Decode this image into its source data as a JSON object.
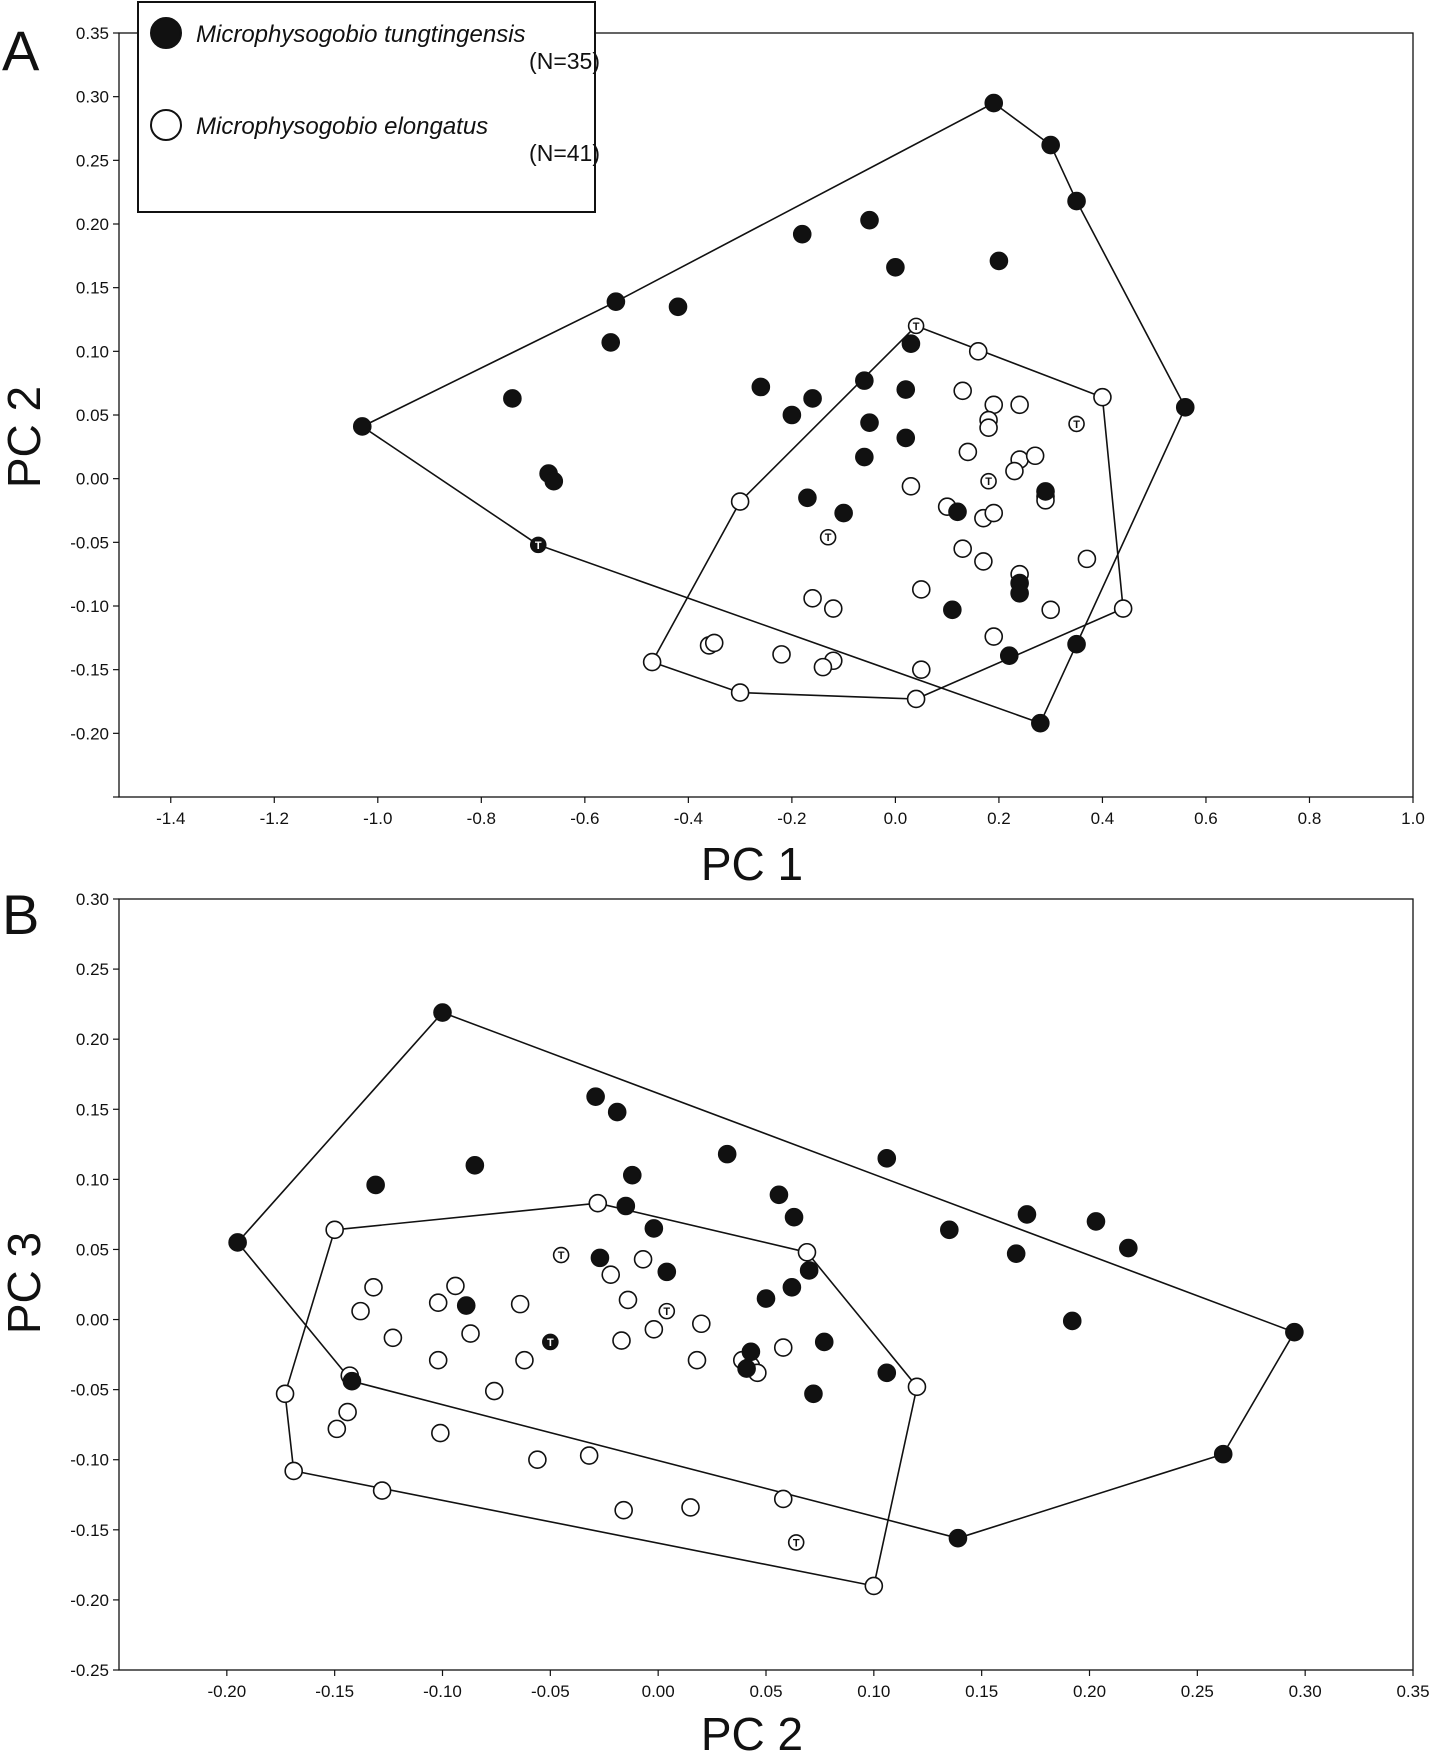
{
  "legend": {
    "species": [
      {
        "name": "Microphysogobio tungtingensis",
        "n": "(N=35)",
        "marker": "filled"
      },
      {
        "name": "Microphysogobio elongatus",
        "n": "(N=41)",
        "marker": "open"
      }
    ]
  },
  "type_marker_letter": "T",
  "colors": {
    "ink": "#111111",
    "fill_filled": "#111111",
    "fill_open": "#ffffff"
  },
  "chart_data": [
    {
      "type": "scatter",
      "panel": "A",
      "xlabel": "PC 1",
      "ylabel": "PC 2",
      "xlim": [
        -1.5,
        1.0
      ],
      "ylim": [
        -0.25,
        0.35
      ],
      "xticks": [
        -1.4,
        -1.2,
        -1.0,
        -0.8,
        -0.6,
        -0.4,
        -0.2,
        0.0,
        0.2,
        0.4,
        0.6,
        0.8,
        1.0
      ],
      "xtick_labels": [
        "-1.4",
        "-1.2",
        "-1.0",
        "-0.8",
        "-0.6",
        "-0.4",
        "-0.2",
        "0.0",
        "0.2",
        "0.4",
        "0.6",
        "0.8",
        "1.0"
      ],
      "yticks": [
        -0.25,
        -0.2,
        -0.15,
        -0.1,
        -0.05,
        0.0,
        0.05,
        0.1,
        0.15,
        0.2,
        0.25,
        0.3,
        0.35
      ],
      "ytick_labels": [
        "",
        "-0.20",
        "-0.15",
        "-0.10",
        "-0.05",
        "0.00",
        "0.05",
        "0.10",
        "0.15",
        "0.20",
        "0.25",
        "0.30",
        "0.35"
      ],
      "grid": false,
      "legend_position": "top-left",
      "series": [
        {
          "name": "Microphysogobio tungtingensis",
          "marker": "filled",
          "points": [
            [
              0.19,
              0.295
            ],
            [
              0.3,
              0.262
            ],
            [
              0.35,
              0.218
            ],
            [
              0.56,
              0.056
            ],
            [
              0.35,
              -0.13
            ],
            [
              0.28,
              -0.192
            ],
            [
              -0.69,
              -0.052
            ],
            [
              -1.03,
              0.041
            ],
            [
              -0.54,
              0.139
            ],
            [
              -0.55,
              0.107
            ],
            [
              -0.42,
              0.135
            ],
            [
              -0.74,
              0.063
            ],
            [
              -0.67,
              0.004
            ],
            [
              -0.66,
              -0.002
            ],
            [
              -0.18,
              0.192
            ],
            [
              -0.05,
              0.203
            ],
            [
              0.0,
              0.166
            ],
            [
              0.2,
              0.171
            ],
            [
              0.03,
              0.106
            ],
            [
              -0.26,
              0.072
            ],
            [
              -0.16,
              0.063
            ],
            [
              -0.2,
              0.05
            ],
            [
              -0.06,
              0.077
            ],
            [
              0.02,
              0.07
            ],
            [
              -0.05,
              0.044
            ],
            [
              0.02,
              0.032
            ],
            [
              -0.06,
              0.017
            ],
            [
              -0.17,
              -0.015
            ],
            [
              -0.1,
              -0.027
            ],
            [
              0.12,
              -0.026
            ],
            [
              0.29,
              -0.01
            ],
            [
              0.24,
              -0.082
            ],
            [
              0.24,
              -0.09
            ],
            [
              0.11,
              -0.103
            ],
            [
              0.22,
              -0.139
            ]
          ],
          "type_specimens": [
            [
              -0.69,
              -0.052
            ]
          ]
        },
        {
          "name": "Microphysogobio elongatus",
          "marker": "open",
          "points": [
            [
              0.04,
              0.12
            ],
            [
              0.4,
              0.064
            ],
            [
              0.44,
              -0.102
            ],
            [
              0.04,
              -0.173
            ],
            [
              -0.3,
              -0.168
            ],
            [
              -0.47,
              -0.144
            ],
            [
              -0.3,
              -0.018
            ],
            [
              0.16,
              0.1
            ],
            [
              0.13,
              0.069
            ],
            [
              0.19,
              0.058
            ],
            [
              0.24,
              0.058
            ],
            [
              0.18,
              0.046
            ],
            [
              0.18,
              0.04
            ],
            [
              0.35,
              0.043
            ],
            [
              0.14,
              0.021
            ],
            [
              0.24,
              0.015
            ],
            [
              0.27,
              0.018
            ],
            [
              0.23,
              0.006
            ],
            [
              0.18,
              -0.002
            ],
            [
              0.03,
              -0.006
            ],
            [
              0.29,
              -0.014
            ],
            [
              0.29,
              -0.017
            ],
            [
              0.1,
              -0.022
            ],
            [
              0.17,
              -0.031
            ],
            [
              0.19,
              -0.027
            ],
            [
              -0.13,
              -0.046
            ],
            [
              0.13,
              -0.055
            ],
            [
              0.17,
              -0.065
            ],
            [
              0.37,
              -0.063
            ],
            [
              0.24,
              -0.075
            ],
            [
              0.05,
              -0.087
            ],
            [
              -0.16,
              -0.094
            ],
            [
              -0.12,
              -0.102
            ],
            [
              0.3,
              -0.103
            ],
            [
              0.19,
              -0.124
            ],
            [
              -0.36,
              -0.131
            ],
            [
              -0.35,
              -0.129
            ],
            [
              -0.22,
              -0.138
            ],
            [
              -0.12,
              -0.143
            ],
            [
              -0.14,
              -0.148
            ],
            [
              0.05,
              -0.15
            ]
          ],
          "type_specimens": [
            [
              0.04,
              0.12
            ],
            [
              0.35,
              0.043
            ],
            [
              0.18,
              -0.002
            ],
            [
              -0.13,
              -0.046
            ]
          ]
        }
      ],
      "hulls": [
        {
          "series": "Microphysogobio tungtingensis",
          "vertices": [
            [
              -1.03,
              0.041
            ],
            [
              -0.54,
              0.139
            ],
            [
              0.19,
              0.295
            ],
            [
              0.3,
              0.262
            ],
            [
              0.35,
              0.218
            ],
            [
              0.56,
              0.056
            ],
            [
              0.35,
              -0.13
            ],
            [
              0.28,
              -0.192
            ],
            [
              -0.69,
              -0.052
            ]
          ]
        },
        {
          "series": "Microphysogobio elongatus",
          "vertices": [
            [
              0.04,
              0.12
            ],
            [
              0.4,
              0.064
            ],
            [
              0.44,
              -0.102
            ],
            [
              0.04,
              -0.173
            ],
            [
              -0.3,
              -0.168
            ],
            [
              -0.47,
              -0.144
            ],
            [
              -0.3,
              -0.018
            ]
          ]
        }
      ]
    },
    {
      "type": "scatter",
      "panel": "B",
      "xlabel": "PC 2",
      "ylabel": "PC 3",
      "xlim": [
        -0.25,
        0.35
      ],
      "ylim": [
        -0.25,
        0.3
      ],
      "xticks": [
        -0.2,
        -0.15,
        -0.1,
        -0.05,
        0.0,
        0.05,
        0.1,
        0.15,
        0.2,
        0.25,
        0.3,
        0.35
      ],
      "xtick_labels": [
        "-0.20",
        "-0.15",
        "-0.10",
        "-0.05",
        "0.00",
        "0.05",
        "0.10",
        "0.15",
        "0.20",
        "0.25",
        "0.30",
        "0.35"
      ],
      "yticks": [
        -0.25,
        -0.2,
        -0.15,
        -0.1,
        -0.05,
        0.0,
        0.05,
        0.1,
        0.15,
        0.2,
        0.25,
        0.3
      ],
      "ytick_labels": [
        "-0.25",
        "-0.20",
        "-0.15",
        "-0.10",
        "-0.05",
        "0.00",
        "0.05",
        "0.10",
        "0.15",
        "0.20",
        "0.25",
        "0.30"
      ],
      "grid": false,
      "series": [
        {
          "name": "Microphysogobio tungtingensis",
          "marker": "filled",
          "points": [
            [
              -0.1,
              0.219
            ],
            [
              0.295,
              -0.009
            ],
            [
              0.262,
              -0.096
            ],
            [
              0.139,
              -0.156
            ],
            [
              -0.142,
              -0.044
            ],
            [
              -0.195,
              0.055
            ],
            [
              -0.131,
              0.096
            ],
            [
              -0.085,
              0.11
            ],
            [
              -0.029,
              0.159
            ],
            [
              -0.019,
              0.148
            ],
            [
              0.032,
              0.118
            ],
            [
              -0.012,
              0.103
            ],
            [
              -0.015,
              0.081
            ],
            [
              -0.002,
              0.065
            ],
            [
              0.056,
              0.089
            ],
            [
              0.063,
              0.073
            ],
            [
              0.106,
              0.115
            ],
            [
              0.135,
              0.064
            ],
            [
              0.171,
              0.075
            ],
            [
              0.166,
              0.047
            ],
            [
              0.203,
              0.07
            ],
            [
              0.218,
              0.051
            ],
            [
              0.192,
              -0.001
            ],
            [
              -0.089,
              0.01
            ],
            [
              -0.05,
              -0.016
            ],
            [
              -0.027,
              0.044
            ],
            [
              0.004,
              0.034
            ],
            [
              0.05,
              0.015
            ],
            [
              0.062,
              0.023
            ],
            [
              0.07,
              0.035
            ],
            [
              0.077,
              -0.016
            ],
            [
              0.043,
              -0.023
            ],
            [
              0.041,
              -0.035
            ],
            [
              0.072,
              -0.053
            ],
            [
              0.106,
              -0.038
            ]
          ],
          "type_specimens": [
            [
              -0.05,
              -0.016
            ]
          ]
        },
        {
          "name": "Microphysogobio elongatus",
          "marker": "open",
          "points": [
            [
              -0.028,
              0.083
            ],
            [
              0.069,
              0.048
            ],
            [
              0.12,
              -0.048
            ],
            [
              0.1,
              -0.19
            ],
            [
              -0.169,
              -0.108
            ],
            [
              -0.173,
              -0.053
            ],
            [
              -0.15,
              0.064
            ],
            [
              -0.132,
              0.023
            ],
            [
              -0.138,
              0.006
            ],
            [
              -0.123,
              -0.013
            ],
            [
              -0.102,
              0.012
            ],
            [
              -0.094,
              0.024
            ],
            [
              -0.087,
              -0.01
            ],
            [
              -0.064,
              0.011
            ],
            [
              -0.062,
              -0.029
            ],
            [
              -0.045,
              0.046
            ],
            [
              -0.022,
              0.032
            ],
            [
              -0.014,
              0.014
            ],
            [
              -0.007,
              0.043
            ],
            [
              -0.017,
              -0.015
            ],
            [
              0.004,
              0.006
            ],
            [
              -0.002,
              -0.007
            ],
            [
              0.02,
              -0.003
            ],
            [
              0.018,
              -0.029
            ],
            [
              0.039,
              -0.029
            ],
            [
              0.043,
              -0.033
            ],
            [
              0.046,
              -0.038
            ],
            [
              0.058,
              -0.02
            ],
            [
              -0.102,
              -0.029
            ],
            [
              -0.076,
              -0.051
            ],
            [
              -0.143,
              -0.04
            ],
            [
              -0.144,
              -0.066
            ],
            [
              -0.149,
              -0.078
            ],
            [
              -0.101,
              -0.081
            ],
            [
              -0.056,
              -0.1
            ],
            [
              -0.032,
              -0.097
            ],
            [
              -0.128,
              -0.122
            ],
            [
              -0.016,
              -0.136
            ],
            [
              0.015,
              -0.134
            ],
            [
              0.058,
              -0.128
            ],
            [
              0.064,
              -0.159
            ]
          ],
          "type_specimens": [
            [
              -0.045,
              0.046
            ],
            [
              0.004,
              0.006
            ],
            [
              0.064,
              -0.159
            ]
          ]
        }
      ],
      "hulls": [
        {
          "series": "Microphysogobio tungtingensis",
          "vertices": [
            [
              -0.1,
              0.219
            ],
            [
              0.295,
              -0.009
            ],
            [
              0.262,
              -0.096
            ],
            [
              0.139,
              -0.156
            ],
            [
              -0.142,
              -0.044
            ],
            [
              -0.195,
              0.055
            ]
          ]
        },
        {
          "series": "Microphysogobio elongatus",
          "vertices": [
            [
              -0.028,
              0.083
            ],
            [
              0.069,
              0.048
            ],
            [
              0.12,
              -0.048
            ],
            [
              0.1,
              -0.19
            ],
            [
              -0.169,
              -0.108
            ],
            [
              -0.173,
              -0.053
            ],
            [
              -0.15,
              0.064
            ]
          ]
        }
      ]
    }
  ]
}
